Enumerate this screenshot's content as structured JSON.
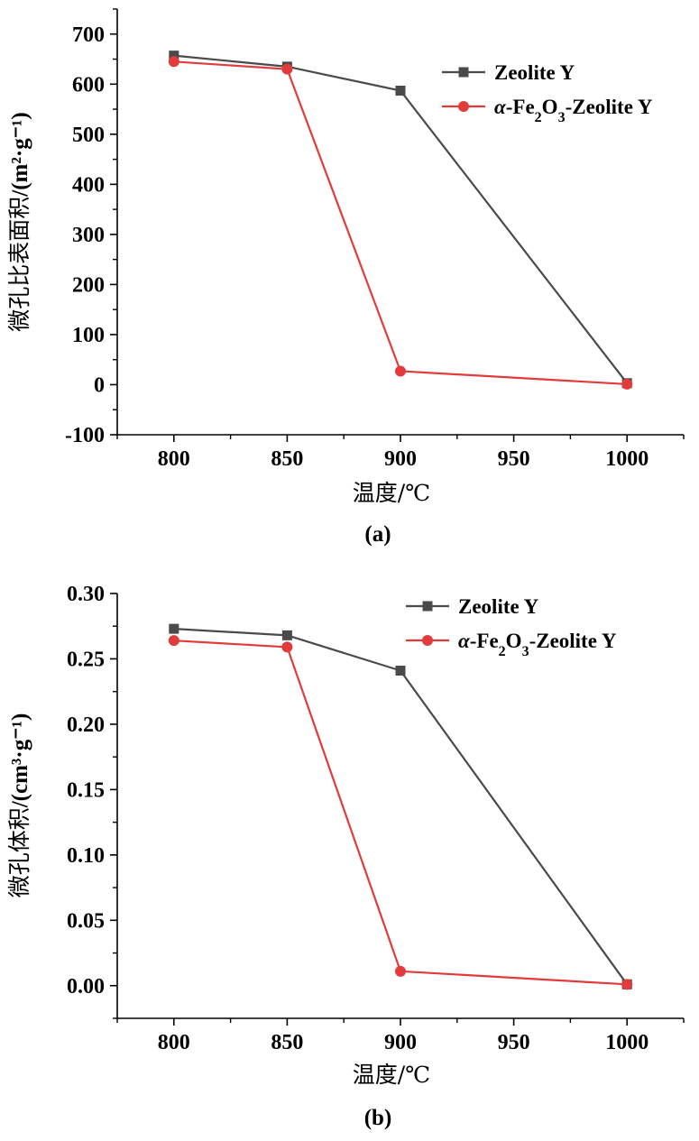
{
  "chart_data": [
    {
      "type": "line",
      "panel_label": "(a)",
      "x": [
        800,
        850,
        900,
        1000
      ],
      "xlabel": "温度/℃",
      "ylabel_prefix": "微孔比表面积",
      "ylabel_unit": "/(m²·g⁻¹)",
      "xlim": [
        775,
        1025
      ],
      "ylim": [
        -100,
        750
      ],
      "x_ticks": [
        "800",
        "850",
        "900",
        "950",
        "1000"
      ],
      "x_tick_values": [
        800,
        850,
        900,
        950,
        1000
      ],
      "y_ticks": [
        "-100",
        "0",
        "100",
        "200",
        "300",
        "400",
        "500",
        "600",
        "700"
      ],
      "y_tick_values": [
        -100,
        0,
        100,
        200,
        300,
        400,
        500,
        600,
        700
      ],
      "legend_position": "top-right",
      "series": [
        {
          "name": "Zeolite Y",
          "marker": "square",
          "color": "#4a4a4a",
          "values": [
            657,
            635,
            587,
            3
          ]
        },
        {
          "name": "α-Fe2O3-Zeolite Y",
          "marker": "circle",
          "color": "#e23b3b",
          "values": [
            645,
            630,
            27,
            1
          ]
        }
      ]
    },
    {
      "type": "line",
      "panel_label": "(b)",
      "x": [
        800,
        850,
        900,
        1000
      ],
      "xlabel": "温度/℃",
      "ylabel_prefix": "微孔体积",
      "ylabel_unit": "/(cm³·g⁻¹)",
      "xlim": [
        775,
        1025
      ],
      "ylim": [
        -0.025,
        0.3
      ],
      "x_ticks": [
        "800",
        "850",
        "900",
        "950",
        "1000"
      ],
      "x_tick_values": [
        800,
        850,
        900,
        950,
        1000
      ],
      "y_ticks": [
        "0.00",
        "0.05",
        "0.10",
        "0.15",
        "0.20",
        "0.25",
        "0.30"
      ],
      "y_tick_values": [
        0,
        0.05,
        0.1,
        0.15,
        0.2,
        0.25,
        0.3
      ],
      "legend_position": "top-right",
      "series": [
        {
          "name": "Zeolite Y",
          "marker": "square",
          "color": "#4a4a4a",
          "values": [
            0.273,
            0.268,
            0.241,
            0.001
          ]
        },
        {
          "name": "α-Fe2O3-Zeolite Y",
          "marker": "circle",
          "color": "#e23b3b",
          "values": [
            0.264,
            0.259,
            0.011,
            0.001
          ]
        }
      ]
    }
  ]
}
